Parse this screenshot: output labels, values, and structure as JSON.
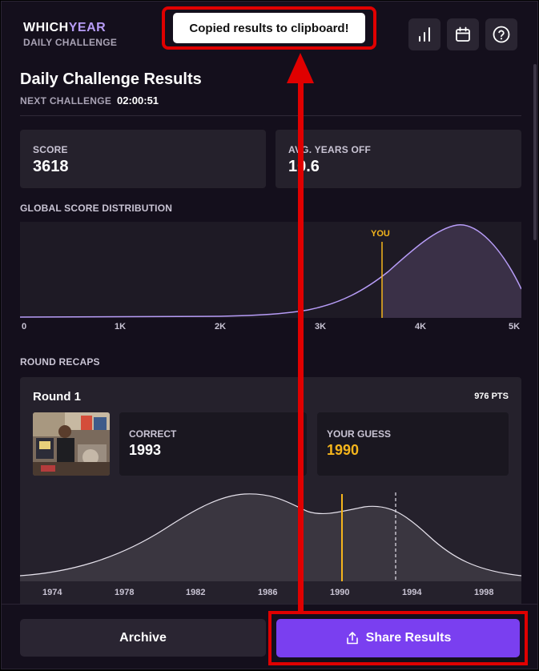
{
  "brand": {
    "title_main": "WHICH",
    "title_accent": "YEAR",
    "subtitle": "DAILY CHALLENGE"
  },
  "header_icons": [
    "bar-chart-icon",
    "calendar-icon",
    "help-icon"
  ],
  "toast": {
    "message": "Copied results to clipboard!"
  },
  "results": {
    "title": "Daily Challenge Results",
    "next_label": "NEXT CHALLENGE",
    "next_value": "02:00:51",
    "score_label": "SCORE",
    "score_value": "3618",
    "avg_label": "AVG. YEARS OFF",
    "avg_value": "10.6"
  },
  "distribution": {
    "label": "GLOBAL SCORE DISTRIBUTION",
    "marker_label": "YOU",
    "ticks": [
      "0",
      "1K",
      "2K",
      "3K",
      "4K",
      "5K"
    ]
  },
  "recaps": {
    "label": "ROUND RECAPS",
    "round_title": "Round 1",
    "round_points": "976 PTS",
    "correct_label": "CORRECT",
    "correct_value": "1993",
    "guess_label": "YOUR GUESS",
    "guess_value": "1990",
    "year_ticks": [
      "1974",
      "1978",
      "1982",
      "1986",
      "1990",
      "1994",
      "1998"
    ]
  },
  "footer": {
    "archive_label": "Archive",
    "share_label": "Share Results"
  },
  "colors": {
    "accent": "#7a3ff0",
    "gold": "#f5b51c",
    "lavender": "#b79cf7",
    "annotation": "#e00000"
  }
}
